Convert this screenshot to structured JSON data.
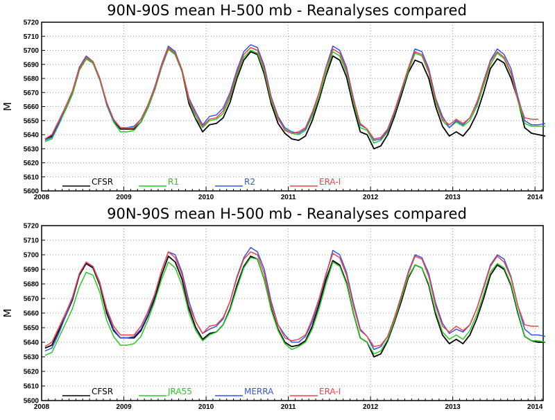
{
  "colors": {
    "CFSR": "#000000",
    "R1": "#22cc22",
    "R2": "#3355ee",
    "ERA-I": "#ee4444",
    "JRA55": "#22cc22",
    "MERRA": "#3355ee"
  },
  "chart_data": [
    {
      "type": "line",
      "title": "90N-90S mean H-500 mb - Reanalyses compared",
      "ylabel": "M",
      "xlabel": "",
      "xlim": [
        2008,
        2014.1
      ],
      "ylim": [
        5600,
        5720
      ],
      "x_ticks": [
        "2008",
        "2009",
        "2010",
        "2011",
        "2012",
        "2013",
        "2014"
      ],
      "y_ticks": [
        "5600",
        "5610",
        "5620",
        "5630",
        "5640",
        "5650",
        "5660",
        "5670",
        "5680",
        "5690",
        "5700",
        "5710",
        "5720"
      ],
      "grid": true,
      "legend": "bottom",
      "x_start": "2008-01",
      "series": [
        {
          "name": "CFSR",
          "values": [
            5637,
            5639,
            5648,
            5658,
            5669,
            5686,
            5694,
            5691,
            5679,
            5662,
            5650,
            5644,
            5644,
            5644,
            5649,
            5659,
            5672,
            5688,
            5701,
            5697,
            5685,
            5662,
            5651,
            5642,
            5647,
            5648,
            5652,
            5663,
            5680,
            5693,
            5699,
            5697,
            5683,
            5662,
            5648,
            5641,
            5637,
            5636,
            5639,
            5650,
            5665,
            5682,
            5696,
            5693,
            5681,
            5660,
            5642,
            5640,
            5630,
            5632,
            5640,
            5653,
            5668,
            5684,
            5693,
            5691,
            5680,
            5660,
            5646,
            5639,
            5642,
            5639,
            5645,
            5655,
            5670,
            5687,
            5694,
            5691,
            5680,
            5665,
            5645,
            5641,
            5640,
            5639
          ]
        },
        {
          "name": "R1",
          "values": [
            5635,
            5637,
            5647,
            5658,
            5669,
            5686,
            5694,
            5691,
            5679,
            5661,
            5649,
            5642,
            5642,
            5643,
            5649,
            5659,
            5672,
            5688,
            5701,
            5697,
            5685,
            5664,
            5652,
            5645,
            5650,
            5651,
            5655,
            5666,
            5682,
            5695,
            5700,
            5698,
            5685,
            5664,
            5651,
            5644,
            5641,
            5640,
            5643,
            5653,
            5667,
            5684,
            5699,
            5696,
            5684,
            5663,
            5645,
            5643,
            5634,
            5636,
            5642,
            5655,
            5670,
            5685,
            5698,
            5696,
            5684,
            5663,
            5650,
            5645,
            5649,
            5646,
            5650,
            5660,
            5675,
            5690,
            5698,
            5694,
            5683,
            5664,
            5648,
            5646,
            5646,
            5646
          ]
        },
        {
          "name": "R2",
          "values": [
            5636,
            5638,
            5648,
            5660,
            5671,
            5688,
            5696,
            5692,
            5680,
            5662,
            5650,
            5645,
            5645,
            5646,
            5651,
            5661,
            5674,
            5690,
            5703,
            5699,
            5686,
            5666,
            5656,
            5647,
            5653,
            5654,
            5659,
            5670,
            5686,
            5699,
            5704,
            5702,
            5689,
            5667,
            5653,
            5645,
            5642,
            5641,
            5644,
            5655,
            5670,
            5688,
            5703,
            5700,
            5688,
            5666,
            5647,
            5644,
            5636,
            5637,
            5643,
            5656,
            5671,
            5687,
            5701,
            5699,
            5687,
            5666,
            5653,
            5645,
            5650,
            5647,
            5652,
            5662,
            5678,
            5693,
            5701,
            5697,
            5687,
            5667,
            5650,
            5647,
            5647,
            5648
          ]
        },
        {
          "name": "ERA-I",
          "values": [
            5637,
            5640,
            5650,
            5660,
            5671,
            5687,
            5695,
            5692,
            5680,
            5663,
            5651,
            5645,
            5645,
            5645,
            5651,
            5661,
            5673,
            5689,
            5702,
            5698,
            5686,
            5665,
            5654,
            5646,
            5651,
            5652,
            5657,
            5668,
            5684,
            5697,
            5702,
            5700,
            5687,
            5666,
            5652,
            5643,
            5641,
            5642,
            5645,
            5656,
            5670,
            5687,
            5701,
            5698,
            5686,
            5665,
            5648,
            5644,
            5637,
            5638,
            5644,
            5657,
            5672,
            5687,
            5699,
            5697,
            5685,
            5665,
            5651,
            5647,
            5651,
            5648,
            5652,
            5663,
            5677,
            5692,
            5699,
            5695,
            5684,
            5665,
            5652,
            5651,
            5651,
            null
          ]
        }
      ],
      "legend_entries": [
        "CFSR",
        "R1",
        "R2",
        "ERA-I"
      ]
    },
    {
      "type": "line",
      "title": "90N-90S mean H-500 mb - Reanalyses compared",
      "ylabel": "M",
      "xlabel": "",
      "xlim": [
        2008,
        2014.1
      ],
      "ylim": [
        5600,
        5720
      ],
      "x_ticks": [
        "2008",
        "2009",
        "2010",
        "2011",
        "2012",
        "2013",
        "2014"
      ],
      "y_ticks": [
        "5600",
        "5610",
        "5620",
        "5630",
        "5640",
        "5650",
        "5660",
        "5670",
        "5680",
        "5690",
        "5700",
        "5710",
        "5720"
      ],
      "grid": true,
      "legend": "bottom",
      "x_start": "2008-01",
      "series": [
        {
          "name": "CFSR",
          "values": [
            5636,
            5638,
            5648,
            5658,
            5669,
            5686,
            5694,
            5691,
            5679,
            5660,
            5648,
            5643,
            5643,
            5643,
            5648,
            5658,
            5670,
            5686,
            5699,
            5695,
            5683,
            5663,
            5650,
            5642,
            5646,
            5647,
            5652,
            5663,
            5679,
            5692,
            5699,
            5697,
            5683,
            5663,
            5649,
            5640,
            5637,
            5638,
            5641,
            5651,
            5666,
            5683,
            5696,
            5693,
            5681,
            5660,
            5643,
            5640,
            5630,
            5632,
            5641,
            5654,
            5668,
            5684,
            5693,
            5691,
            5679,
            5659,
            5645,
            5639,
            5642,
            5639,
            5645,
            5656,
            5670,
            5686,
            5693,
            5690,
            5679,
            5660,
            5644,
            5641,
            5640,
            5640
          ]
        },
        {
          "name": "JRA55",
          "values": [
            5631,
            5633,
            5643,
            5653,
            5663,
            5678,
            5688,
            5686,
            5674,
            5655,
            5644,
            5638,
            5638,
            5639,
            5644,
            5655,
            5668,
            5683,
            5695,
            5691,
            5679,
            5660,
            5648,
            5641,
            5645,
            5647,
            5652,
            5662,
            5677,
            5691,
            5698,
            5697,
            5683,
            5662,
            5648,
            5639,
            5635,
            5637,
            5640,
            5649,
            5663,
            5680,
            5695,
            5692,
            5680,
            5660,
            5643,
            5640,
            5632,
            5634,
            5642,
            5655,
            5670,
            5685,
            5693,
            5691,
            5680,
            5661,
            5647,
            5642,
            5645,
            5642,
            5648,
            5659,
            5673,
            5688,
            5694,
            5691,
            5680,
            5661,
            5644,
            5641,
            5641,
            5640
          ]
        },
        {
          "name": "MERRA",
          "values": [
            5634,
            5636,
            5646,
            5658,
            5670,
            5687,
            5695,
            5692,
            5681,
            5662,
            5649,
            5643,
            5643,
            5644,
            5649,
            5659,
            5672,
            5689,
            5702,
            5700,
            5688,
            5668,
            5654,
            5646,
            5649,
            5651,
            5656,
            5668,
            5685,
            5698,
            5705,
            5702,
            5690,
            5668,
            5652,
            5645,
            5640,
            5640,
            5644,
            5654,
            5669,
            5686,
            5703,
            5700,
            5688,
            5667,
            5649,
            5644,
            5635,
            5637,
            5644,
            5657,
            5672,
            5688,
            5700,
            5698,
            5687,
            5667,
            5653,
            5646,
            5649,
            5647,
            5652,
            5663,
            5678,
            5693,
            5700,
            5697,
            5685,
            5665,
            5649,
            5645,
            5645,
            5644
          ]
        },
        {
          "name": "ERA-I",
          "values": [
            5637,
            5640,
            5650,
            5660,
            5671,
            5687,
            5695,
            5692,
            5680,
            5663,
            5651,
            5645,
            5645,
            5645,
            5651,
            5661,
            5673,
            5689,
            5702,
            5698,
            5686,
            5665,
            5654,
            5646,
            5651,
            5652,
            5657,
            5668,
            5684,
            5697,
            5702,
            5700,
            5687,
            5666,
            5652,
            5643,
            5641,
            5642,
            5645,
            5656,
            5670,
            5687,
            5701,
            5698,
            5686,
            5665,
            5648,
            5644,
            5637,
            5638,
            5644,
            5657,
            5672,
            5687,
            5699,
            5697,
            5685,
            5665,
            5651,
            5647,
            5651,
            5648,
            5652,
            5663,
            5677,
            5692,
            5699,
            5695,
            5684,
            5665,
            5652,
            5651,
            5651,
            null
          ]
        }
      ],
      "legend_entries": [
        "CFSR",
        "JRA55",
        "MERRA",
        "ERA-I"
      ]
    }
  ]
}
